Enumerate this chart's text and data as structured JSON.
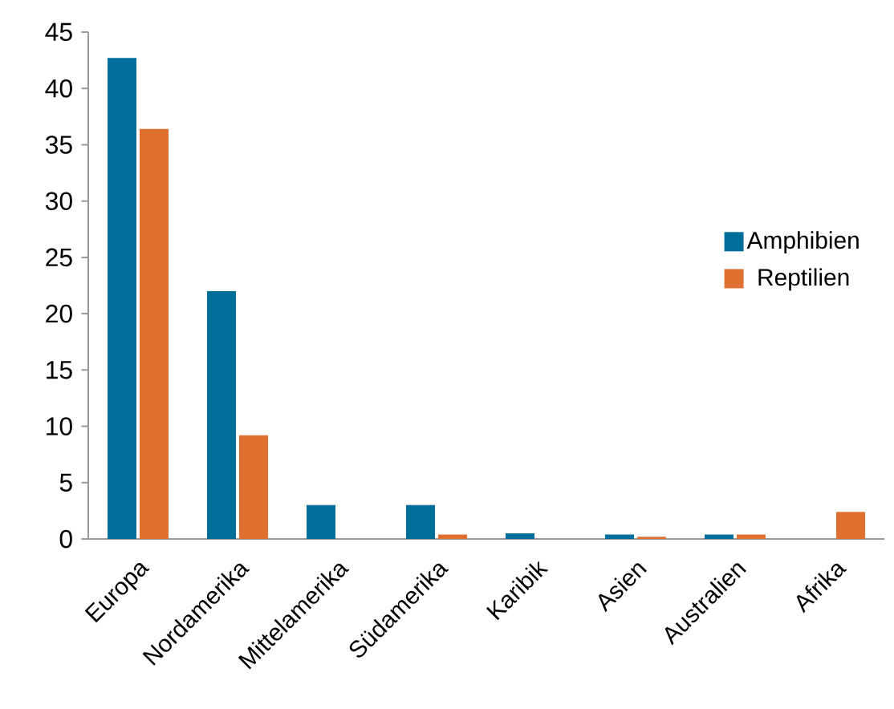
{
  "chart_data": {
    "type": "bar",
    "categories": [
      "Europa",
      "Nordamerika",
      "Mittelamerika",
      "Südamerika",
      "Karibik",
      "Asien",
      "Australien",
      "Afrika"
    ],
    "series": [
      {
        "name": "Amphibien",
        "color": "#006e9a",
        "values": [
          42.7,
          22,
          3,
          3,
          0.5,
          0.4,
          0.4,
          0
        ]
      },
      {
        "name": "Reptilien",
        "color": "#e07030",
        "values": [
          36.4,
          9.2,
          0,
          0.4,
          0,
          0.2,
          0.4,
          2.4
        ]
      }
    ],
    "ylim": [
      0,
      45
    ],
    "yticks": [
      0,
      5,
      10,
      15,
      20,
      25,
      30,
      35,
      40,
      45
    ],
    "grid": false,
    "legend": "right"
  }
}
